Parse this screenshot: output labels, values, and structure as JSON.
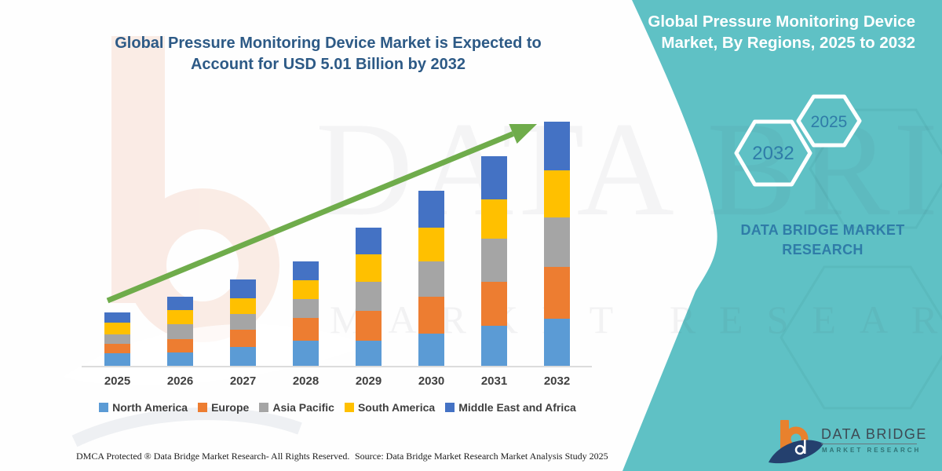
{
  "page": {
    "title_line1": "Global Pressure Monitoring Device Market is Expected to",
    "title_line2": "Account for USD 5.01 Billion by 2032"
  },
  "right_panel": {
    "heading_line1": "Global Pressure Monitoring Device",
    "heading_line2": "Market, By Regions, 2025 to 2032",
    "hex_large_label": "2032",
    "hex_small_label": "2025",
    "brand_text": "DATA BRIDGE MARKET RESEARCH",
    "panel_color": "#5FC1C5",
    "year_text_color": "#2F7CA8"
  },
  "watermark": {
    "text_primary": "DATA BRIDGE",
    "text_secondary": "MARKET RESEARCH"
  },
  "logo": {
    "name_text": "DATA BRIDGE",
    "subtitle_text": "MARKET RESEARCH",
    "orange": "#E8812D",
    "navy": "#24406E"
  },
  "footer": {
    "dmca_text": "DMCA Protected ® Data Bridge Market Research-  All Rights Reserved.",
    "source_text": "Source: Data Bridge Market Research  Market Analysis Study 2025"
  },
  "chart_data": {
    "type": "bar",
    "stacked": true,
    "unit": "USD Billion",
    "title": "Global Pressure Monitoring Device Market, By Regions, 2025 to 2032",
    "categories": [
      "2025",
      "2026",
      "2027",
      "2028",
      "2029",
      "2030",
      "2031",
      "2032"
    ],
    "series": [
      {
        "name": "North America",
        "color": "#5B9BD5",
        "values": [
          0.25,
          0.27,
          0.38,
          0.51,
          0.52,
          0.66,
          0.82,
          0.96
        ]
      },
      {
        "name": "Europe",
        "color": "#ED7D31",
        "values": [
          0.19,
          0.28,
          0.36,
          0.47,
          0.62,
          0.75,
          0.9,
          1.06
        ]
      },
      {
        "name": "Asia Pacific",
        "color": "#A5A5A5",
        "values": [
          0.19,
          0.31,
          0.33,
          0.39,
          0.6,
          0.72,
          0.88,
          1.02
        ]
      },
      {
        "name": "South America",
        "color": "#FFC000",
        "values": [
          0.24,
          0.29,
          0.33,
          0.39,
          0.56,
          0.69,
          0.8,
          0.97
        ]
      },
      {
        "name": "Middle East and Africa",
        "color": "#4472C4",
        "values": [
          0.21,
          0.28,
          0.38,
          0.39,
          0.55,
          0.75,
          0.88,
          1.0
        ]
      }
    ],
    "totals": [
      1.08,
      1.43,
      1.78,
      2.15,
      2.85,
      3.57,
      4.28,
      5.01
    ],
    "highlight_value_2032": "USD 5.01 Billion",
    "trend_arrow": true,
    "trend_arrow_color": "#6FAC4B",
    "legend_position": "bottom",
    "gridlines": false,
    "value_axis_hidden": true
  }
}
